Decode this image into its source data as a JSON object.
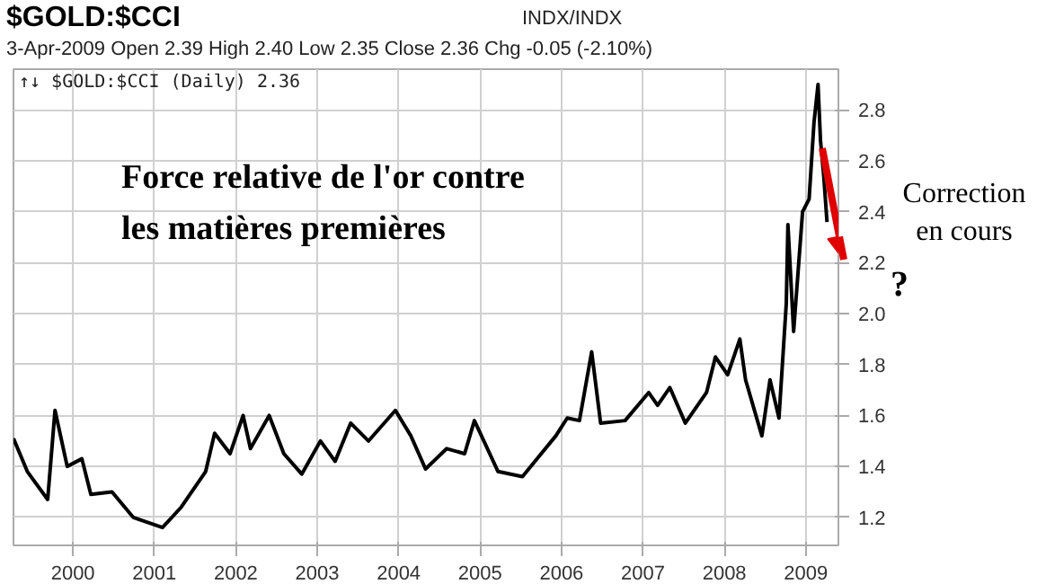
{
  "chart_data": {
    "type": "line",
    "title": "$GOLD:$CCI",
    "subtitle": "3-Apr-2009   Open 2.39  High 2.40  Low 2.35  Close 2.36  Chg -0.05 (-2.10%)",
    "annotations": [
      "INDX/INDX",
      "↑↓ $GOLD:$CCI (Daily) 2.36",
      "Force relative de l'or contre\nles matières premières",
      "Correction\nen cours",
      "?"
    ],
    "x": [
      1999.27,
      1999.44,
      1999.69,
      1999.78,
      1999.93,
      2000.11,
      2000.22,
      2000.48,
      2000.74,
      2001.1,
      2001.33,
      2001.63,
      2001.74,
      2001.93,
      2002.09,
      2002.18,
      2002.41,
      2002.59,
      2002.81,
      2003.04,
      2003.22,
      2003.41,
      2003.63,
      2003.96,
      2004.15,
      2004.33,
      2004.59,
      2004.81,
      2004.93,
      2005.22,
      2005.52,
      2005.93,
      2006.07,
      2006.22,
      2006.37,
      2006.48,
      2006.78,
      2007.07,
      2007.18,
      2007.33,
      2007.52,
      2007.78,
      2007.89,
      2008.04,
      2008.19,
      2008.26,
      2008.46,
      2008.56,
      2008.67,
      2008.76,
      2008.78,
      2008.85,
      2008.96,
      2009.04,
      2009.1,
      2009.15,
      2009.18,
      2009.22,
      2009.26
    ],
    "series": [
      {
        "color": "#000000",
        "values": [
          1.51,
          1.38,
          1.27,
          1.62,
          1.4,
          1.43,
          1.29,
          1.3,
          1.2,
          1.16,
          1.24,
          1.38,
          1.53,
          1.45,
          1.6,
          1.47,
          1.6,
          1.45,
          1.37,
          1.5,
          1.42,
          1.57,
          1.5,
          1.62,
          1.52,
          1.39,
          1.47,
          1.45,
          1.58,
          1.38,
          1.36,
          1.52,
          1.59,
          1.58,
          1.85,
          1.57,
          1.58,
          1.69,
          1.64,
          1.71,
          1.57,
          1.69,
          1.83,
          1.76,
          1.9,
          1.74,
          1.52,
          1.74,
          1.59,
          2.04,
          2.35,
          1.93,
          2.4,
          2.45,
          2.75,
          2.9,
          2.68,
          2.54,
          2.36
        ]
      }
    ],
    "xlim": [
      1999.27,
      2009.4
    ],
    "xticks": [
      2000,
      2001,
      2002,
      2003,
      2004,
      2005,
      2006,
      2007,
      2008,
      2009
    ],
    "ylim": [
      1.09,
      2.96
    ],
    "yticks": [
      1.2,
      1.4,
      1.6,
      1.8,
      {
        "value": 2.0,
        "label": "2.0"
      },
      2.2,
      2.4,
      2.6,
      2.8
    ],
    "grid": true,
    "marker": "none",
    "line_style": "solid"
  }
}
